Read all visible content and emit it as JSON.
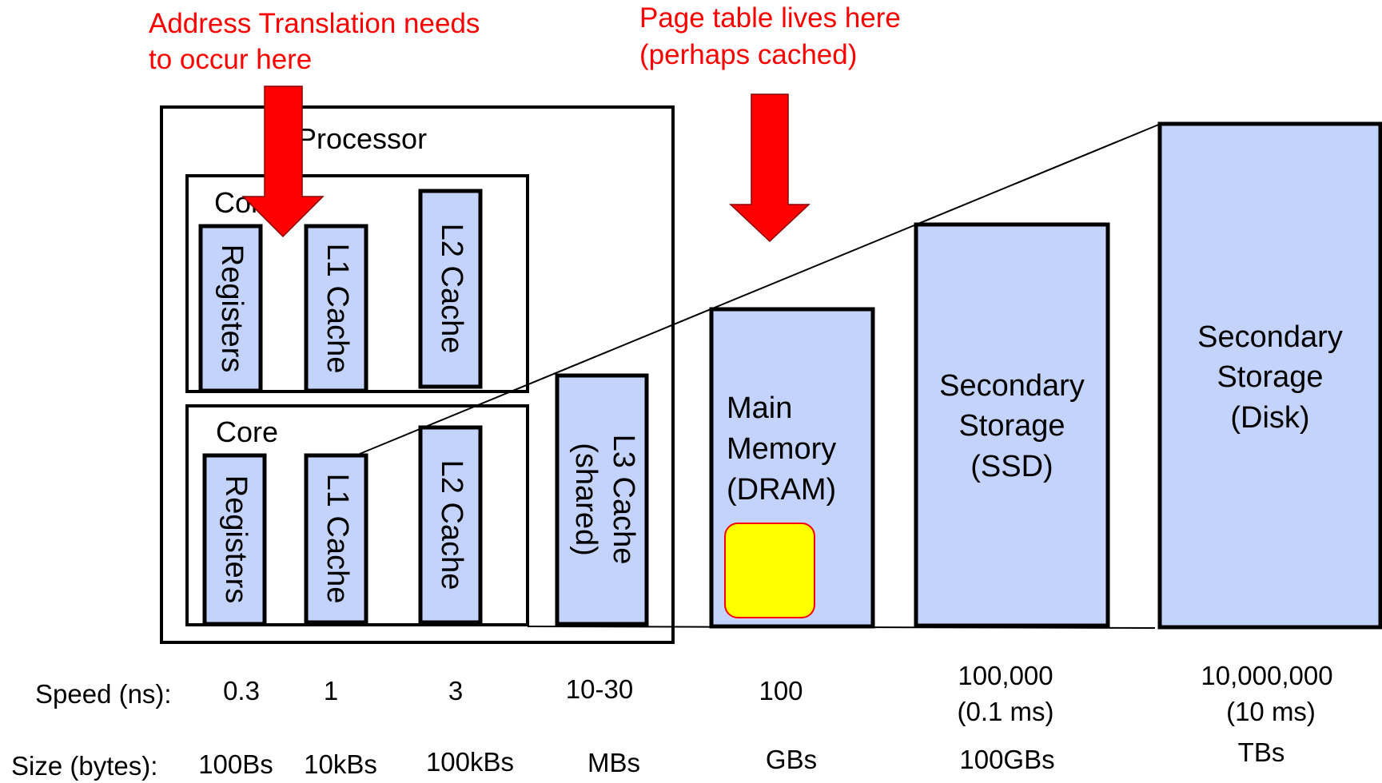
{
  "annotations": {
    "translation_line1": "Address Translation needs",
    "translation_line2": "to occur here",
    "page_table_line1": "Page table lives here",
    "page_table_line2": "(perhaps cached)"
  },
  "processor": {
    "label": "Processor",
    "cores": [
      {
        "label": "Core",
        "registers": "Registers",
        "l1": "L1 Cache",
        "l2": "L2 Cache"
      },
      {
        "label": "Core",
        "registers": "Registers",
        "l1": "L1 Cache",
        "l2": "L2 Cache"
      }
    ],
    "l3": {
      "line1": "L3 Cache",
      "line2": "(shared)"
    }
  },
  "memory": {
    "main": [
      "Main",
      "Memory",
      "(DRAM)"
    ],
    "ssd": [
      "Secondary",
      "Storage",
      "(SSD)"
    ],
    "disk": [
      "Secondary",
      "Storage",
      "(Disk)"
    ]
  },
  "rows": {
    "speed_label": "Speed (ns):",
    "size_label": "Size (bytes):",
    "speed": [
      "0.3",
      "1",
      "3",
      "10-30",
      "100",
      "100,000",
      "(0.1 ms)",
      "10,000,000",
      "(10 ms)"
    ],
    "size": [
      "100Bs",
      "10kBs",
      "100kBs",
      "MBs",
      "GBs",
      "100GBs",
      "TBs"
    ]
  },
  "colors": {
    "block_fill": "#c3d3fb",
    "arrow": "#ff0000",
    "page_table_fill": "#ffff00",
    "annotation_text": "#ff0000"
  }
}
